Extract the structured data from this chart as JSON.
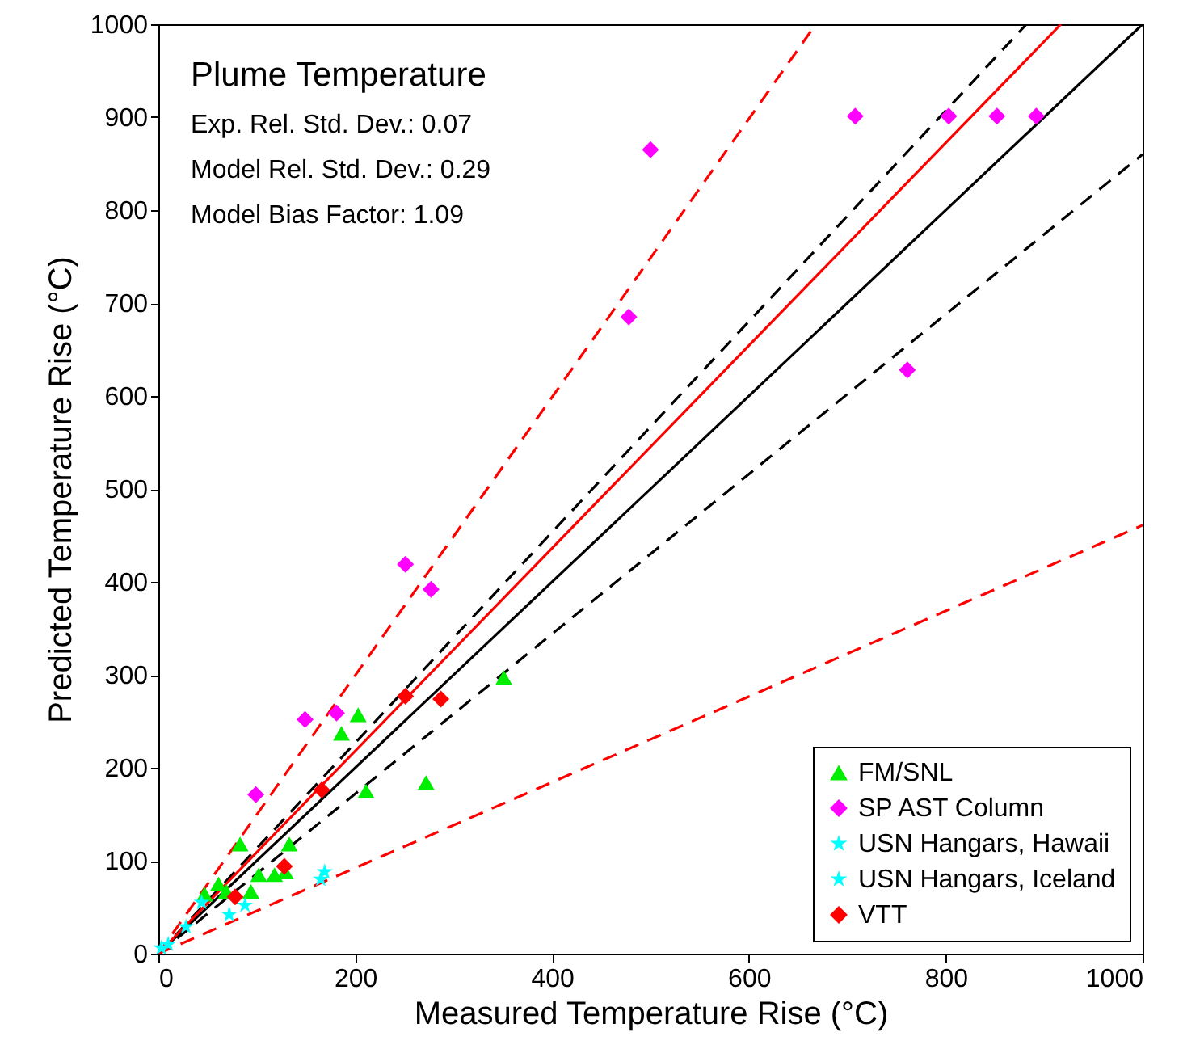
{
  "chart_data": {
    "type": "scatter",
    "title": "Plume Temperature",
    "annotations": [
      "Exp. Rel. Std. Dev.: 0.07",
      "Model Rel. Std. Dev.: 0.29",
      "Model Bias Factor: 1.09"
    ],
    "xlabel": "Measured Temperature Rise (°C)",
    "ylabel": "Predicted Temperature Rise (°C)",
    "xlim": [
      0,
      1000
    ],
    "ylim": [
      0,
      1000
    ],
    "xticks": [
      0,
      200,
      400,
      600,
      800,
      1000
    ],
    "yticks": [
      0,
      100,
      200,
      300,
      400,
      500,
      600,
      700,
      800,
      900,
      1000
    ],
    "legend": "bottom right",
    "series": [
      {
        "type": "line",
        "color": "#000000",
        "line_style": "solid",
        "x": [
          0,
          1000
        ],
        "values": [
          0,
          1000
        ]
      },
      {
        "type": "line",
        "color": "#000000",
        "line_style": "dashed",
        "x": [
          0,
          882
        ],
        "values": [
          0,
          1000
        ]
      },
      {
        "type": "line",
        "color": "#000000",
        "line_style": "dashed",
        "x": [
          0,
          1000
        ],
        "values": [
          0,
          860
        ]
      },
      {
        "type": "line",
        "color": "#ff0000",
        "line_style": "solid",
        "x": [
          0,
          917
        ],
        "values": [
          0,
          1000
        ]
      },
      {
        "type": "line",
        "color": "#ff0000",
        "line_style": "dashed",
        "x": [
          0,
          668
        ],
        "values": [
          0,
          1000
        ]
      },
      {
        "type": "line",
        "color": "#ff0000",
        "line_style": "dashed",
        "x": [
          0,
          1000
        ],
        "values": [
          0,
          461
        ]
      },
      {
        "name": "FM/SNL",
        "color": "#00ee00",
        "marker": "triangle",
        "x": [
          351,
          203,
          186,
          211,
          272,
          83,
          133,
          102,
          118,
          129,
          94,
          47,
          69,
          61
        ],
        "values": [
          297,
          257,
          237,
          175,
          184,
          118,
          118,
          85,
          85,
          88,
          67,
          64,
          67,
          75
        ]
      },
      {
        "name": "SP AST Column",
        "color": "#ff00ff",
        "marker": "diamond",
        "x": [
          99,
          149,
          181,
          251,
          277,
          478,
          500,
          708,
          803,
          852,
          892,
          761
        ],
        "values": [
          171,
          252,
          259,
          419,
          392,
          685,
          865,
          901,
          901,
          901,
          901,
          628
        ]
      },
      {
        "name": "USN Hangars, Hawaii",
        "color": "#00ffff",
        "marker": "star",
        "x": [
          169,
          72,
          28,
          3
        ],
        "values": [
          88,
          42,
          29,
          6
        ]
      },
      {
        "name": "USN Hangars, Iceland",
        "color": "#00ffff",
        "marker": "star",
        "x": [
          88,
          44,
          10,
          165
        ],
        "values": [
          52,
          55,
          10,
          80
        ]
      },
      {
        "name": "VTT",
        "color": "#ff0000",
        "marker": "diamond",
        "x": [
          251,
          287,
          166,
          128,
          78
        ],
        "values": [
          277,
          274,
          176,
          94,
          61
        ]
      }
    ]
  }
}
